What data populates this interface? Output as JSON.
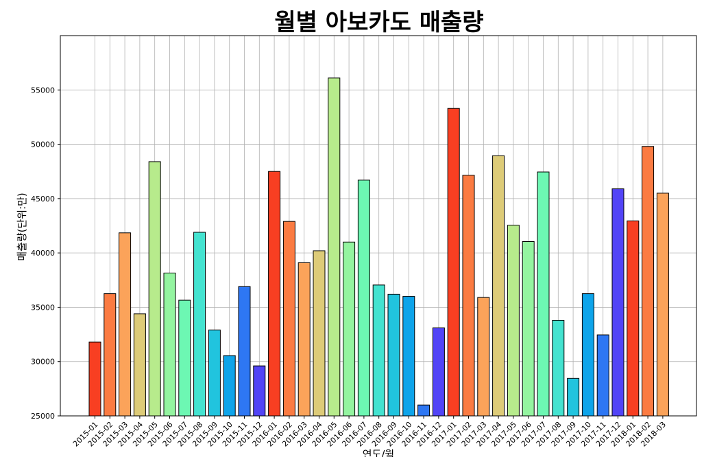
{
  "chart_data": {
    "type": "bar",
    "title": "월별 아보카도 매출량",
    "xlabel": "연도/월",
    "ylabel": "매출량(단위:만)",
    "ylim": [
      25000,
      60000
    ],
    "yticks": [
      25000,
      30000,
      35000,
      40000,
      45000,
      50000,
      55000
    ],
    "grid": true,
    "categories": [
      "2015-01",
      "2015-02",
      "2015-03",
      "2015-04",
      "2015-05",
      "2015-06",
      "2015-07",
      "2015-08",
      "2015-09",
      "2015-10",
      "2015-11",
      "2015-12",
      "2016-01",
      "2016-02",
      "2016-03",
      "2016-04",
      "2016-05",
      "2016-06",
      "2016-07",
      "2016-08",
      "2016-09",
      "2016-10",
      "2016-11",
      "2016-12",
      "2017-01",
      "2017-02",
      "2017-03",
      "2017-04",
      "2017-05",
      "2017-06",
      "2017-07",
      "2017-08",
      "2017-09",
      "2017-10",
      "2017-11",
      "2017-12",
      "2018-01",
      "2018-02",
      "2018-03"
    ],
    "values": [
      31800,
      36250,
      41850,
      34400,
      48400,
      38150,
      35650,
      41900,
      32900,
      30550,
      36900,
      29600,
      47500,
      42900,
      39100,
      40200,
      56100,
      41000,
      46700,
      37050,
      36200,
      36000,
      26000,
      33100,
      53300,
      47150,
      35900,
      48950,
      42550,
      41050,
      47450,
      33800,
      28450,
      36250,
      32450,
      45900,
      42950,
      49800,
      45500
    ],
    "colors": [
      "#f83f22",
      "#fb7b42",
      "#fba35a",
      "#ddcb78",
      "#b7eb8c",
      "#94f4a0",
      "#6df7b3",
      "#44e3d0",
      "#21c4de",
      "#0ea4ea",
      "#2e77f3",
      "#5244f6",
      "#f83f22",
      "#fb7b42",
      "#fba35a",
      "#ddcb78",
      "#b7eb8c",
      "#94f4a0",
      "#6df7b3",
      "#44e3d0",
      "#21c4de",
      "#0ea4ea",
      "#2e77f3",
      "#5244f6",
      "#f83f22",
      "#fb7b42",
      "#fba35a",
      "#ddcb78",
      "#b7eb8c",
      "#94f4a0",
      "#6df7b3",
      "#44e3d0",
      "#21c4de",
      "#0ea4ea",
      "#2e77f3",
      "#5244f6",
      "#f83f22",
      "#fb7b42",
      "#fba35a"
    ]
  }
}
